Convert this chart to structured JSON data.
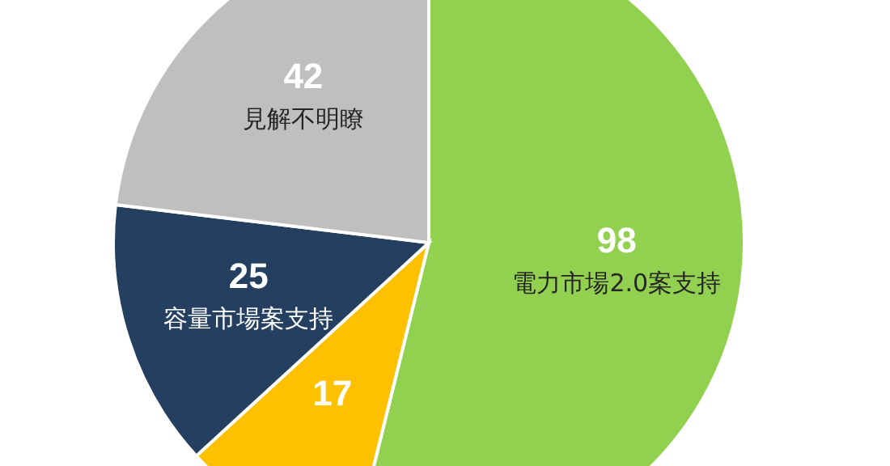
{
  "chart_data": {
    "type": "pie",
    "categories": [
      "電力市場2.0案支持",
      null,
      "容量市場案支持",
      "見解不明瞭"
    ],
    "values": [
      98,
      17,
      25,
      42
    ],
    "colors": [
      "#92d050",
      "#ffc000",
      "#243f60",
      "#bfbfbf"
    ],
    "data_labels": true
  }
}
